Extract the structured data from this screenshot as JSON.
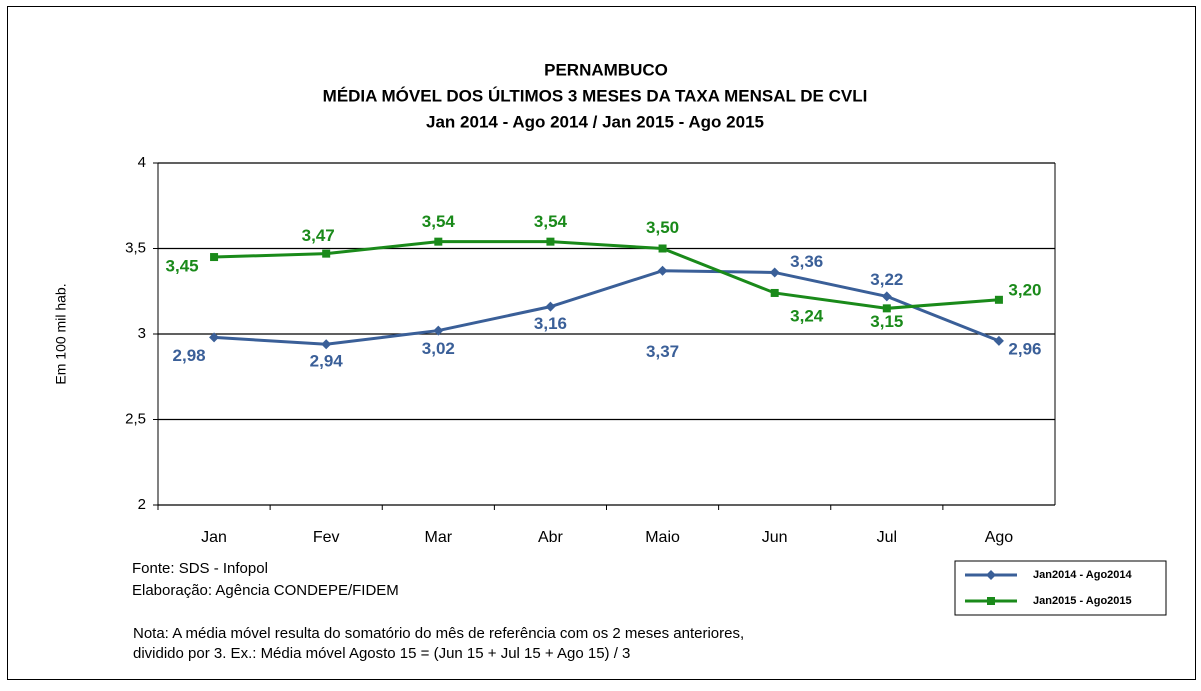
{
  "chart_data": {
    "type": "line",
    "title": [
      "PERNAMBUCO",
      "MÉDIA MÓVEL DOS ÚLTIMOS 3 MESES DA TAXA MENSAL DE CVLI",
      "Jan 2014 - Ago  2014 / Jan 2015 - Ago  2015"
    ],
    "y_label": "Em 100 mil hab.",
    "categories": [
      "Jan",
      "Fev",
      "Mar",
      "Abr",
      "Maio",
      "Jun",
      "Jul",
      "Ago"
    ],
    "series": [
      {
        "name": "Jan2014 - Ago2014",
        "color": "#3a5f98",
        "marker": "diamond",
        "values": [
          2.98,
          2.94,
          3.02,
          3.16,
          3.37,
          3.36,
          3.22,
          2.96
        ],
        "value_labels": [
          "2,98",
          "2,94",
          "3,02",
          "3,16",
          "3,37",
          "3,36",
          "3,22",
          "2,96"
        ]
      },
      {
        "name": "Jan2015 - Ago2015",
        "color": "#1a8a1a",
        "marker": "square",
        "values": [
          3.45,
          3.47,
          3.54,
          3.54,
          3.5,
          3.24,
          3.15,
          3.2
        ],
        "value_labels": [
          "3,45",
          "3,47",
          "3,54",
          "3,54",
          "3,50",
          "3,24",
          "3,15",
          "3,20"
        ]
      }
    ],
    "ylim": [
      2,
      4
    ],
    "yticks": [
      2,
      {
        "value": 2.5,
        "label": "2,5"
      },
      3,
      {
        "value": 3.5,
        "label": "3,5"
      },
      4
    ],
    "grid": true,
    "legend": "bottom-right",
    "notes": [
      "Fonte: SDS - Infopol",
      "Elaboração: Agência CONDEPE/FIDEM"
    ],
    "footnote": [
      "Nota: A média móvel resulta do somatório do mês de referência com os 2 meses anteriores,",
      "dividido por 3. Ex.: Média móvel  Agosto 15 = (Jun 15 + Jul 15 + Ago 15) / 3"
    ]
  }
}
